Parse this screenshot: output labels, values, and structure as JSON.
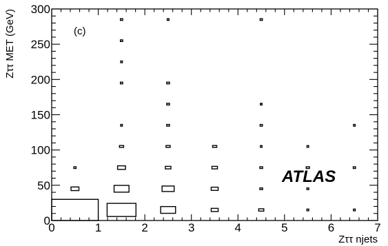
{
  "chart_data": {
    "type": "box2d",
    "panel_label": "(c)",
    "experiment_label": "ATLAS",
    "xlabel": "Zττ njets",
    "ylabel": "Zττ MET (GeV)",
    "xlim": [
      0,
      7
    ],
    "ylim": [
      0,
      300
    ],
    "x_ticks": [
      0,
      1,
      2,
      3,
      4,
      5,
      6,
      7
    ],
    "y_ticks": [
      0,
      50,
      100,
      150,
      200,
      250,
      300
    ],
    "bin_width_x": 1,
    "bin_width_y": 30,
    "cells": [
      {
        "njets": 0,
        "met": 15,
        "rel_size": 1.0
      },
      {
        "njets": 0,
        "met": 45,
        "rel_size": 0.17
      },
      {
        "njets": 0,
        "met": 75,
        "rel_size": 0.05
      },
      {
        "njets": 1,
        "met": 15,
        "rel_size": 0.62
      },
      {
        "njets": 1,
        "met": 45,
        "rel_size": 0.32
      },
      {
        "njets": 1,
        "met": 75,
        "rel_size": 0.17
      },
      {
        "njets": 1,
        "met": 105,
        "rel_size": 0.09
      },
      {
        "njets": 1,
        "met": 135,
        "rel_size": 0.03
      },
      {
        "njets": 1,
        "met": 195,
        "rel_size": 0.05
      },
      {
        "njets": 1,
        "met": 225,
        "rel_size": 0.03
      },
      {
        "njets": 1,
        "met": 255,
        "rel_size": 0.05
      },
      {
        "njets": 1,
        "met": 285,
        "rel_size": 0.05
      },
      {
        "njets": 2,
        "met": 15,
        "rel_size": 0.32
      },
      {
        "njets": 2,
        "met": 45,
        "rel_size": 0.26
      },
      {
        "njets": 2,
        "met": 75,
        "rel_size": 0.12
      },
      {
        "njets": 2,
        "met": 105,
        "rel_size": 0.09
      },
      {
        "njets": 2,
        "met": 135,
        "rel_size": 0.06
      },
      {
        "njets": 2,
        "met": 165,
        "rel_size": 0.06
      },
      {
        "njets": 2,
        "met": 195,
        "rel_size": 0.06
      },
      {
        "njets": 2,
        "met": 285,
        "rel_size": 0.04
      },
      {
        "njets": 3,
        "met": 15,
        "rel_size": 0.15
      },
      {
        "njets": 3,
        "met": 45,
        "rel_size": 0.15
      },
      {
        "njets": 3,
        "met": 75,
        "rel_size": 0.12
      },
      {
        "njets": 3,
        "met": 105,
        "rel_size": 0.09
      },
      {
        "njets": 4,
        "met": 15,
        "rel_size": 0.11
      },
      {
        "njets": 4,
        "met": 45,
        "rel_size": 0.06
      },
      {
        "njets": 4,
        "met": 75,
        "rel_size": 0.06
      },
      {
        "njets": 4,
        "met": 105,
        "rel_size": 0.03
      },
      {
        "njets": 4,
        "met": 135,
        "rel_size": 0.05
      },
      {
        "njets": 4,
        "met": 165,
        "rel_size": 0.03
      },
      {
        "njets": 4,
        "met": 285,
        "rel_size": 0.05
      },
      {
        "njets": 5,
        "met": 15,
        "rel_size": 0.04
      },
      {
        "njets": 5,
        "met": 45,
        "rel_size": 0.04
      },
      {
        "njets": 5,
        "met": 75,
        "rel_size": 0.07
      },
      {
        "njets": 5,
        "met": 105,
        "rel_size": 0.03
      },
      {
        "njets": 6,
        "met": 15,
        "rel_size": 0.04
      },
      {
        "njets": 6,
        "met": 75,
        "rel_size": 0.05
      },
      {
        "njets": 6,
        "met": 135,
        "rel_size": 0.03
      }
    ]
  }
}
